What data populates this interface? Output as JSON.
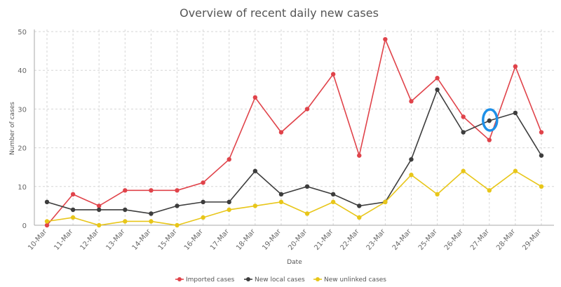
{
  "chart_data": {
    "type": "line",
    "title": "Overview of recent daily new cases",
    "xlabel": "Date",
    "ylabel": "Number of cases",
    "ylim": [
      0,
      50
    ],
    "yticks": [
      0,
      10,
      20,
      30,
      40,
      50
    ],
    "grid": true,
    "legend_position": "bottom",
    "categories": [
      "10-Mar",
      "11-Mar",
      "12-Mar",
      "13-Mar",
      "14-Mar",
      "15-Mar",
      "16-Mar",
      "17-Mar",
      "18-Mar",
      "19-Mar",
      "20-Mar",
      "21-Mar",
      "22-Mar",
      "23-Mar",
      "24-Mar",
      "25-Mar",
      "26-Mar",
      "27-Mar",
      "28-Mar",
      "29-Mar"
    ],
    "series": [
      {
        "name": "Imported cases",
        "color": "#e0434a",
        "values": [
          0,
          8,
          5,
          9,
          9,
          9,
          11,
          17,
          33,
          24,
          30,
          39,
          18,
          48,
          32,
          38,
          28,
          22,
          41,
          24
        ]
      },
      {
        "name": "New local cases",
        "color": "#3d3d3d",
        "values": [
          6,
          4,
          4,
          4,
          3,
          5,
          6,
          6,
          14,
          8,
          10,
          8,
          5,
          6,
          17,
          35,
          24,
          27,
          29,
          18
        ]
      },
      {
        "name": "New unlinked cases",
        "color": "#e8c619",
        "values": [
          1,
          2,
          0,
          1,
          1,
          0,
          2,
          4,
          5,
          6,
          3,
          6,
          2,
          6,
          13,
          8,
          14,
          9,
          14,
          10
        ]
      }
    ],
    "annotation": {
      "type": "highlight-circle",
      "color": "#1e90e8",
      "category": "27-Mar",
      "series": "New local cases"
    }
  }
}
